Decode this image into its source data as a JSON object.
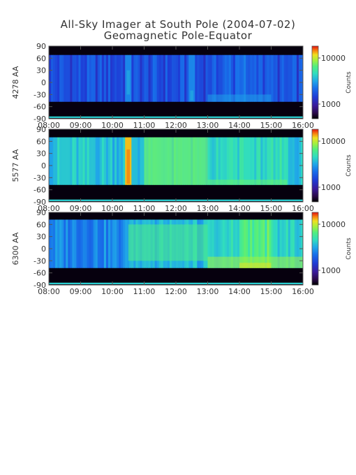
{
  "title": "All-Sky Imager at South Pole (2004-07-02)",
  "subtitle": "Geomagnetic Pole-Equator",
  "colors": {
    "text": "#333333",
    "axis": "#555555",
    "background": "#ffffff",
    "colormap": [
      "#000000",
      "#2a0a4a",
      "#3a1a9a",
      "#1e3cd6",
      "#1870ea",
      "#20a8e8",
      "#30dcc0",
      "#50ee80",
      "#a0f040",
      "#f0e020",
      "#f88010",
      "#e01010"
    ]
  },
  "chart_data": [
    {
      "type": "heatmap",
      "ylabel": "4278 AA",
      "x_ticks": [
        "08:00",
        "09:00",
        "10:00",
        "11:00",
        "12:00",
        "13:00",
        "14:00",
        "15:00",
        "16:00"
      ],
      "x_range": [
        "08:00",
        "16:00"
      ],
      "y_ticks": [
        90,
        60,
        30,
        0,
        -30,
        -60,
        -90
      ],
      "y_range": [
        -90,
        90
      ],
      "colorbar": {
        "label": "Counts",
        "ticks": [
          "10000",
          "1000"
        ],
        "scale": "log"
      },
      "valid_latitude_range": [
        -48,
        68
      ],
      "background_level": 0.3,
      "features": [
        {
          "time": "10:30",
          "lat_range": [
            -30,
            30
          ],
          "level": 0.4
        },
        {
          "time": "12:30",
          "lat_range": [
            -45,
            -20
          ],
          "level": 0.4
        },
        {
          "time_range": [
            "13:00",
            "15:00"
          ],
          "lat_range": [
            -48,
            -30
          ],
          "level": 0.36
        }
      ]
    },
    {
      "type": "heatmap",
      "ylabel": "5577 AA",
      "x_ticks": [
        "08:00",
        "09:00",
        "10:00",
        "11:00",
        "12:00",
        "13:00",
        "14:00",
        "15:00",
        "16:00"
      ],
      "x_range": [
        "08:00",
        "16:00"
      ],
      "y_ticks": [
        90,
        60,
        30,
        0,
        -30,
        -60,
        -90
      ],
      "y_range": [
        -90,
        90
      ],
      "colorbar": {
        "label": "Counts",
        "ticks": [
          "10000",
          "1000"
        ],
        "scale": "log"
      },
      "valid_latitude_range": [
        -48,
        70
      ],
      "background_level": 0.5,
      "features": [
        {
          "time": "10:30",
          "lat_range": [
            -45,
            40
          ],
          "level": 0.85
        },
        {
          "time_range": [
            "11:00",
            "13:00"
          ],
          "lat_range": [
            -48,
            70
          ],
          "level": 0.6
        },
        {
          "time_range": [
            "13:00",
            "15:30"
          ],
          "lat_range": [
            -48,
            -35
          ],
          "level": 0.58
        }
      ]
    },
    {
      "type": "heatmap",
      "ylabel": "6300 AA",
      "x_ticks": [
        "08:00",
        "09:00",
        "10:00",
        "11:00",
        "12:00",
        "13:00",
        "14:00",
        "15:00",
        "16:00"
      ],
      "x_range": [
        "08:00",
        "16:00"
      ],
      "y_ticks": [
        90,
        60,
        30,
        0,
        -30,
        -60,
        -90
      ],
      "y_range": [
        -90,
        90
      ],
      "colorbar": {
        "label": "Counts",
        "ticks": [
          "10000",
          "1000"
        ],
        "scale": "log"
      },
      "valid_latitude_range": [
        -48,
        72
      ],
      "background_level": 0.4,
      "features": [
        {
          "time_range": [
            "10:30",
            "13:00"
          ],
          "lat_range": [
            -30,
            60
          ],
          "level": 0.55
        },
        {
          "time_range": [
            "13:00",
            "16:00"
          ],
          "lat_range": [
            -48,
            -20
          ],
          "level": 0.65
        },
        {
          "time_range": [
            "14:00",
            "15:00"
          ],
          "lat_range": [
            -48,
            -35
          ],
          "level": 0.72
        }
      ]
    }
  ]
}
